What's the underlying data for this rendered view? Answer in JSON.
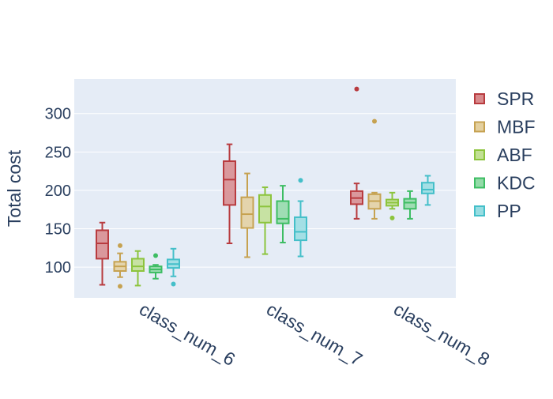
{
  "chart_data": {
    "type": "box",
    "title": "",
    "xlabel": "",
    "ylabel": "Total cost",
    "ylim": [
      60,
      345
    ],
    "yticks": [
      100,
      150,
      200,
      250,
      300
    ],
    "grid": true,
    "legend_position": "right",
    "categories": [
      "class_num_6",
      "class_num_7",
      "class_num_8"
    ],
    "series": [
      {
        "name": "SPR",
        "color": "#b83b3f",
        "fill": "#d88a8c",
        "boxes": [
          {
            "min": 77,
            "q1": 111,
            "median": 131,
            "q3": 148,
            "max": 158,
            "outliers": []
          },
          {
            "min": 131,
            "q1": 181,
            "median": 214,
            "q3": 238,
            "max": 260,
            "outliers": []
          },
          {
            "min": 163,
            "q1": 182,
            "median": 190,
            "q3": 199,
            "max": 209,
            "outliers": [
              332
            ]
          }
        ]
      },
      {
        "name": "MBF",
        "color": "#c6a251",
        "fill": "#e4d09f",
        "boxes": [
          {
            "min": 87,
            "q1": 95,
            "median": 101,
            "q3": 107,
            "max": 118,
            "outliers": [
              128,
              75
            ]
          },
          {
            "min": 113,
            "q1": 151,
            "median": 169,
            "q3": 191,
            "max": 222,
            "outliers": []
          },
          {
            "min": 163,
            "q1": 176,
            "median": 186,
            "q3": 195,
            "max": 197,
            "outliers": [
              290
            ]
          }
        ]
      },
      {
        "name": "ABF",
        "color": "#8cc43d",
        "fill": "#c2e094",
        "boxes": [
          {
            "min": 76,
            "q1": 95,
            "median": 101,
            "q3": 111,
            "max": 121,
            "outliers": []
          },
          {
            "min": 117,
            "q1": 158,
            "median": 179,
            "q3": 194,
            "max": 204,
            "outliers": []
          },
          {
            "min": 176,
            "q1": 180,
            "median": 184,
            "q3": 188,
            "max": 197,
            "outliers": [
              164
            ]
          }
        ]
      },
      {
        "name": "KDC",
        "color": "#3dbd63",
        "fill": "#93dba8",
        "boxes": [
          {
            "min": 85,
            "q1": 93,
            "median": 97,
            "q3": 101,
            "max": 103,
            "outliers": [
              115
            ]
          },
          {
            "min": 132,
            "q1": 157,
            "median": 163,
            "q3": 186,
            "max": 206,
            "outliers": []
          },
          {
            "min": 163,
            "q1": 176,
            "median": 184,
            "q3": 189,
            "max": 199,
            "outliers": []
          }
        ]
      },
      {
        "name": "PP",
        "color": "#44bfc9",
        "fill": "#98dde2",
        "boxes": [
          {
            "min": 88,
            "q1": 99,
            "median": 104,
            "q3": 110,
            "max": 124,
            "outliers": [
              78
            ]
          },
          {
            "min": 114,
            "q1": 135,
            "median": 146,
            "q3": 165,
            "max": 186,
            "outliers": [
              213
            ]
          },
          {
            "min": 181,
            "q1": 196,
            "median": 201,
            "q3": 210,
            "max": 219,
            "outliers": []
          }
        ]
      }
    ]
  }
}
